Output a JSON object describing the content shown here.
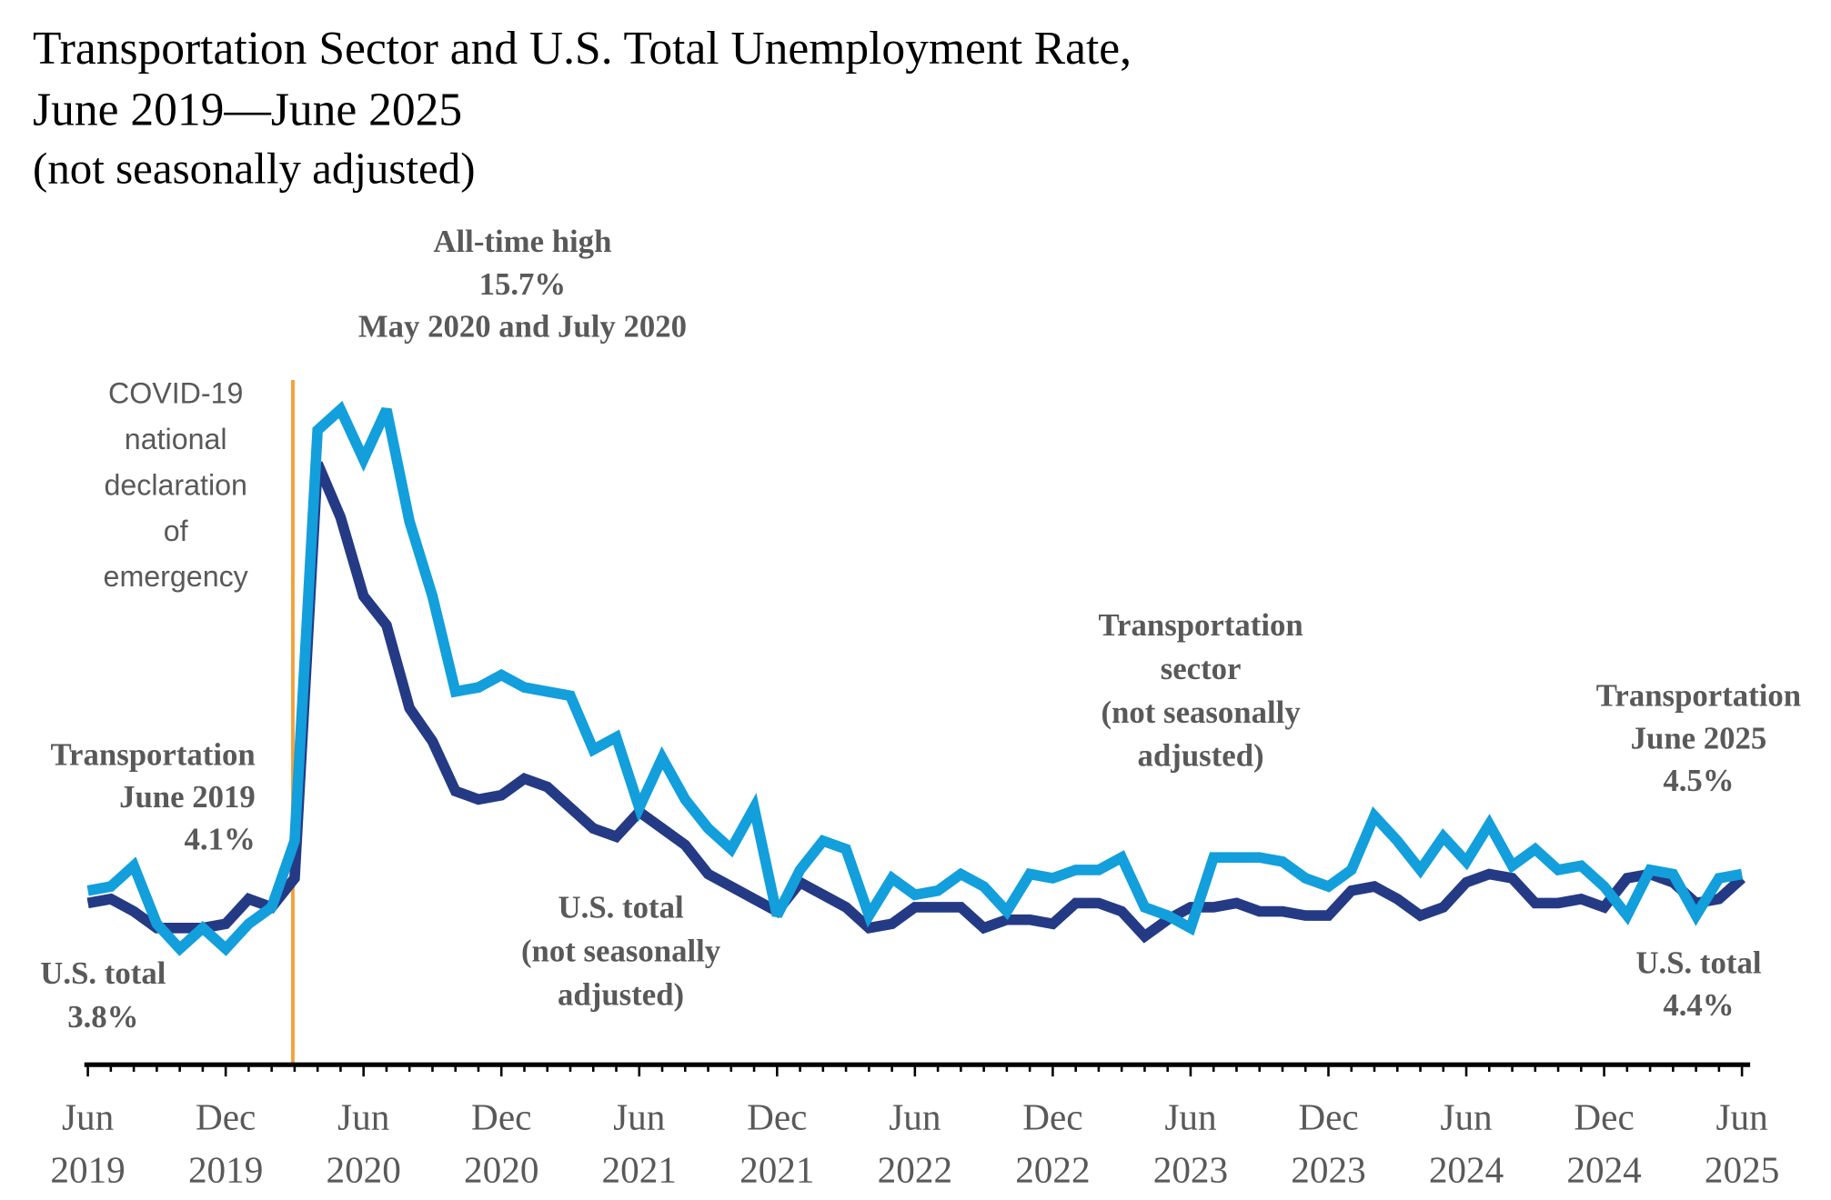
{
  "chart_data": {
    "type": "line",
    "title": [
      "Transportation Sector and U.S. Total Unemployment Rate,",
      "June 2019—June 2025",
      "(not seasonally adjusted)"
    ],
    "categories": [
      "Jun 2019",
      null,
      null,
      null,
      null,
      null,
      "Dec 2019",
      null,
      null,
      null,
      null,
      null,
      "Jun 2020",
      null,
      null,
      null,
      null,
      null,
      "Dec 2020",
      null,
      null,
      null,
      null,
      null,
      "Jun 2021",
      null,
      null,
      null,
      null,
      null,
      "Dec 2021",
      null,
      null,
      null,
      null,
      null,
      "Jun 2022",
      null,
      null,
      null,
      null,
      null,
      "Dec 2022",
      null,
      null,
      null,
      null,
      null,
      "Jun 2023",
      null,
      null,
      null,
      null,
      null,
      "Dec 2023",
      null,
      null,
      null,
      null,
      null,
      "Jun 2024",
      null,
      null,
      null,
      null,
      null,
      "Dec 2024",
      null,
      null,
      null,
      null,
      null,
      "Jun 2025"
    ],
    "series": [
      {
        "name": "U.S. total",
        "color": "#243a85",
        "values": [
          3.8,
          3.9,
          3.6,
          3.2,
          3.2,
          3.2,
          3.3,
          3.9,
          3.7,
          4.4,
          14.4,
          13.1,
          11.2,
          10.5,
          8.5,
          7.7,
          6.5,
          6.3,
          6.4,
          6.8,
          6.6,
          6.1,
          5.6,
          5.4,
          6.0,
          5.6,
          5.2,
          4.5,
          4.2,
          3.9,
          3.6,
          4.3,
          4.0,
          3.7,
          3.2,
          3.3,
          3.7,
          3.7,
          3.7,
          3.2,
          3.4,
          3.4,
          3.3,
          3.8,
          3.8,
          3.6,
          3.0,
          3.4,
          3.7,
          3.7,
          3.8,
          3.6,
          3.6,
          3.5,
          3.5,
          4.1,
          4.2,
          3.9,
          3.5,
          3.7,
          4.3,
          4.5,
          4.4,
          3.8,
          3.8,
          3.9,
          3.7,
          4.4,
          4.5,
          4.3,
          3.8,
          3.9,
          4.4
        ]
      },
      {
        "name": "Transportation sector",
        "color": "#129fdc",
        "values": [
          4.1,
          4.2,
          4.7,
          3.3,
          2.7,
          3.2,
          2.7,
          3.3,
          3.7,
          5.3,
          15.2,
          15.7,
          14.5,
          15.7,
          13.0,
          11.2,
          8.9,
          9.0,
          9.3,
          9.0,
          8.9,
          8.8,
          7.5,
          7.8,
          6.1,
          7.3,
          6.3,
          5.6,
          5.1,
          6.1,
          3.5,
          4.6,
          5.3,
          5.1,
          3.5,
          4.4,
          4.0,
          4.1,
          4.5,
          4.2,
          3.6,
          4.5,
          4.4,
          4.6,
          4.6,
          4.9,
          3.7,
          3.5,
          3.2,
          4.9,
          4.9,
          4.9,
          4.8,
          4.4,
          4.2,
          4.6,
          5.9,
          5.3,
          4.6,
          5.4,
          4.8,
          5.7,
          4.7,
          5.1,
          4.6,
          4.7,
          4.2,
          3.5,
          4.6,
          4.5,
          3.5,
          4.4,
          4.5
        ]
      }
    ],
    "ylim": [
      0,
      16
    ],
    "annotations": [
      [
        "All-time high",
        "15.7%",
        "May 2020 and July 2020"
      ],
      [
        "COVID-19",
        "national",
        "declaration",
        "of",
        "emergency"
      ],
      [
        "Transportation",
        "June 2019",
        "4.1%"
      ],
      [
        "U.S. total",
        "3.8%"
      ],
      [
        "Transportation",
        "sector",
        "(not seasonally",
        "adjusted)"
      ],
      [
        "U.S. total",
        "(not seasonally",
        "adjusted)"
      ],
      [
        "Transportation",
        "June 2025",
        "4.5%"
      ],
      [
        "U.S. total",
        "4.4%"
      ]
    ]
  }
}
